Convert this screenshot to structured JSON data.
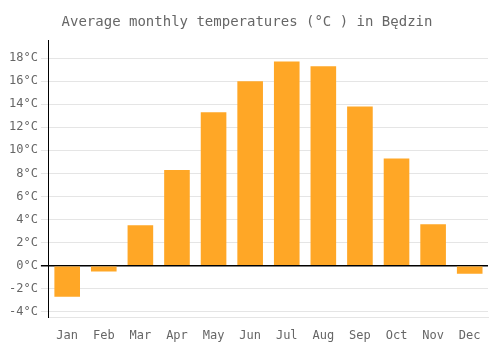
{
  "chart_data": {
    "type": "bar",
    "title": "Average monthly temperatures (°C ) in Będzin",
    "categories": [
      "Jan",
      "Feb",
      "Mar",
      "Apr",
      "May",
      "Jun",
      "Jul",
      "Aug",
      "Sep",
      "Oct",
      "Nov",
      "Dec"
    ],
    "values": [
      -2.7,
      -0.5,
      3.5,
      8.3,
      13.3,
      16.0,
      17.7,
      17.3,
      13.8,
      9.3,
      3.6,
      -0.7
    ],
    "color": "#FFA726",
    "ylim": [
      -4.5,
      19.5
    ],
    "yticks": [
      {
        "value": -4,
        "label": "-4°C"
      },
      {
        "value": -2,
        "label": "-2°C"
      },
      {
        "value": 0,
        "label": "0°C"
      },
      {
        "value": 2,
        "label": "2°C"
      },
      {
        "value": 4,
        "label": "4°C"
      },
      {
        "value": 6,
        "label": "6°C"
      },
      {
        "value": 8,
        "label": "8°C"
      },
      {
        "value": 10,
        "label": "10°C"
      },
      {
        "value": 12,
        "label": "12°C"
      },
      {
        "value": 14,
        "label": "14°C"
      },
      {
        "value": 16,
        "label": "16°C"
      },
      {
        "value": 18,
        "label": "18°C"
      }
    ],
    "grid": true
  }
}
